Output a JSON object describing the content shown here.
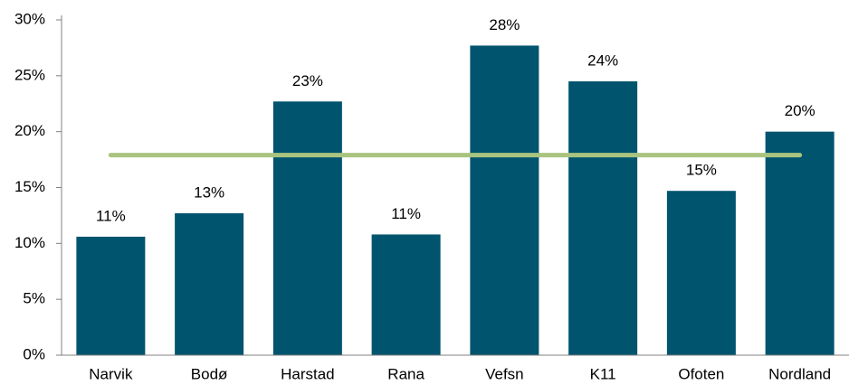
{
  "chart_data": {
    "type": "bar",
    "categories": [
      "Narvik",
      "Bodø",
      "Harstad",
      "Rana",
      "Vefsn",
      "K11",
      "Ofoten",
      "Nordland"
    ],
    "values": [
      10.6,
      12.7,
      22.7,
      10.8,
      27.7,
      24.5,
      14.7,
      20.0
    ],
    "value_labels": [
      "11%",
      "13%",
      "23%",
      "11%",
      "28%",
      "24%",
      "15%",
      "20%"
    ],
    "color": "#00546e",
    "reference_line": {
      "value": 17.9,
      "color": "#a9c47f"
    },
    "ylim": [
      0,
      30
    ],
    "yticks": [
      {
        "value": 0,
        "label": "0%"
      },
      {
        "value": 5,
        "label": "5%"
      },
      {
        "value": 10,
        "label": "10%"
      },
      {
        "value": 15,
        "label": "15%"
      },
      {
        "value": 20,
        "label": "20%"
      },
      {
        "value": 25,
        "label": "25%"
      },
      {
        "value": 30,
        "label": "30%"
      }
    ],
    "grid": false
  }
}
